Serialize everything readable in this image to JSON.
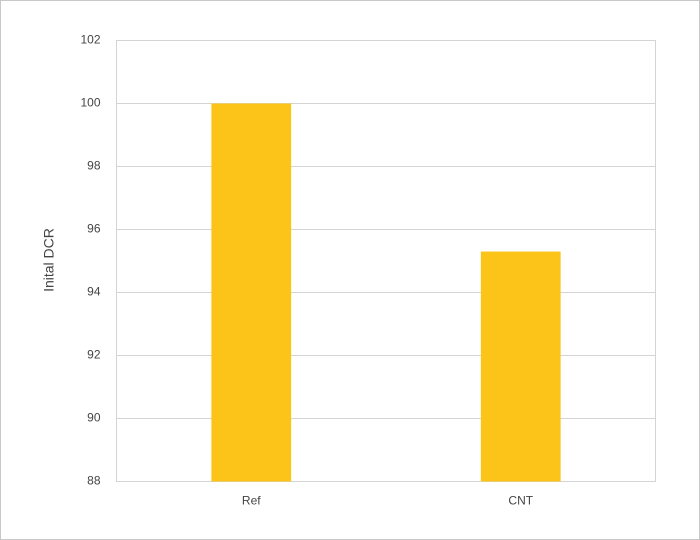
{
  "chart_data": {
    "type": "bar",
    "y_label": "Inital DCR",
    "categories": [
      "Ref",
      "CNT"
    ],
    "values": [
      100,
      95.3
    ],
    "color": "#fcc419",
    "ylim": [
      88,
      102
    ],
    "yticks": [
      88,
      90,
      92,
      94,
      96,
      98,
      100,
      102
    ],
    "grid": true
  }
}
